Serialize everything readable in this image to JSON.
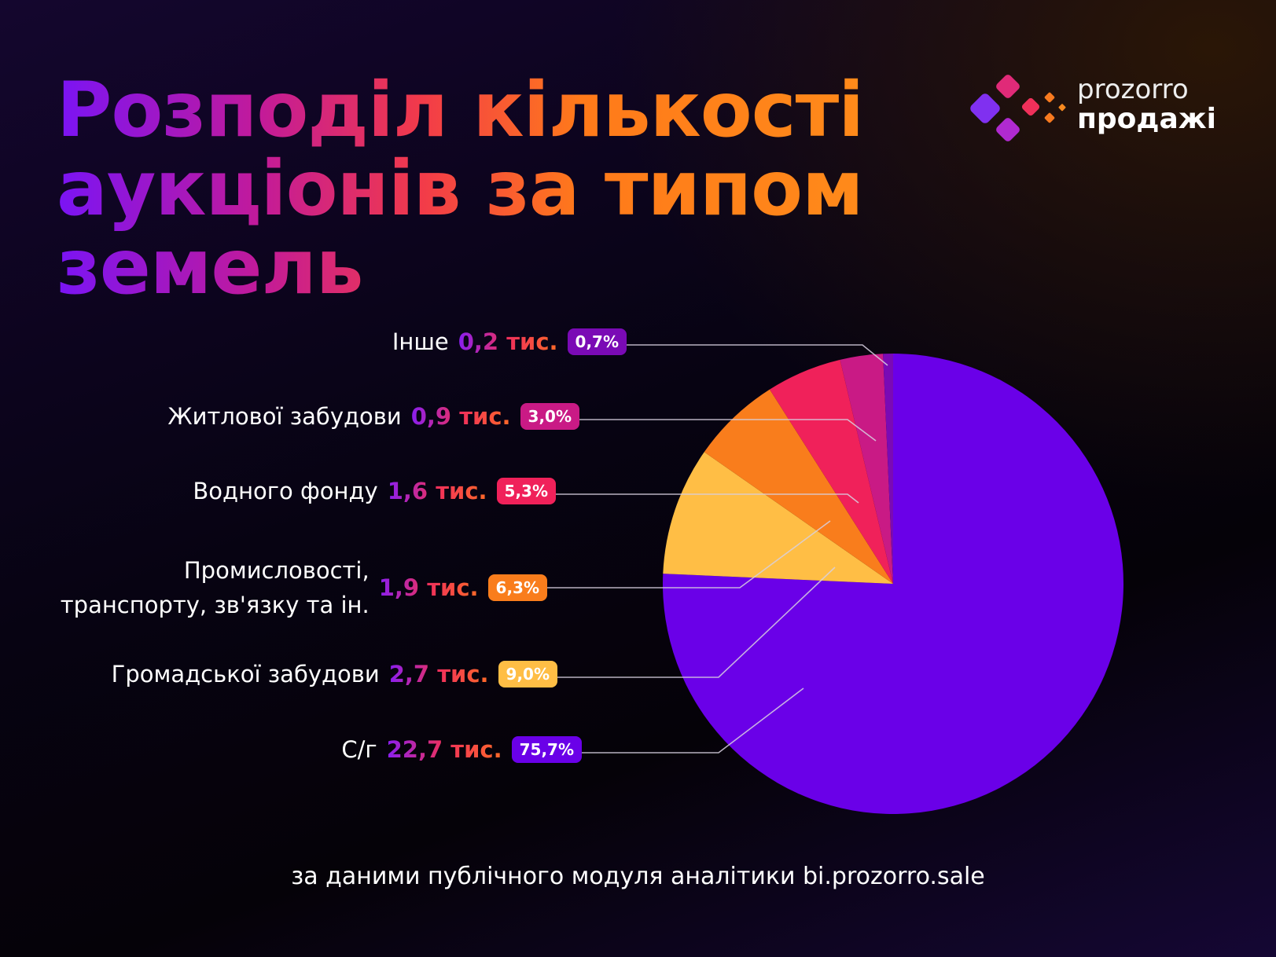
{
  "title": {
    "line1": "Розподіл кількості",
    "line2": "аукціонів за типом",
    "line3": "земель"
  },
  "logo": {
    "line1": "prozorro",
    "line2": "продажі"
  },
  "footer": "за даними публічного модуля аналітики bi.prozorro.sale",
  "chart_data": {
    "type": "pie",
    "title": "Розподіл кількості аукціонів за типом земель",
    "unit": "тис.",
    "slices": [
      {
        "label": "С/г",
        "value": 22.7,
        "value_text": "22,7 тис.",
        "percent": 75.7,
        "percent_text": "75,7%",
        "color": "#6a00e8"
      },
      {
        "label": "Громадської забудови",
        "value": 2.7,
        "value_text": "2,7 тис.",
        "percent": 9.0,
        "percent_text": "9,0%",
        "color": "#ffbe45"
      },
      {
        "label": "Промисловості, транспорту, зв'язку та ін.",
        "label_line1": "Промисловості,",
        "label_line2": "транспорту, зв'язку та ін.",
        "value": 1.9,
        "value_text": "1,9 тис.",
        "percent": 6.3,
        "percent_text": "6,3%",
        "color": "#f97d1c"
      },
      {
        "label": "Водного фонду",
        "value": 1.6,
        "value_text": "1,6 тис.",
        "percent": 5.3,
        "percent_text": "5,3%",
        "color": "#f0215a"
      },
      {
        "label": "Житлової забудови",
        "value": 0.9,
        "value_text": "0,9 тис.",
        "percent": 3.0,
        "percent_text": "3,0%",
        "color": "#c91a85"
      },
      {
        "label": "Інше",
        "value": 0.2,
        "value_text": "0,2 тис.",
        "percent": 0.7,
        "percent_text": "0,7%",
        "color": "#7a0ab5"
      }
    ]
  }
}
